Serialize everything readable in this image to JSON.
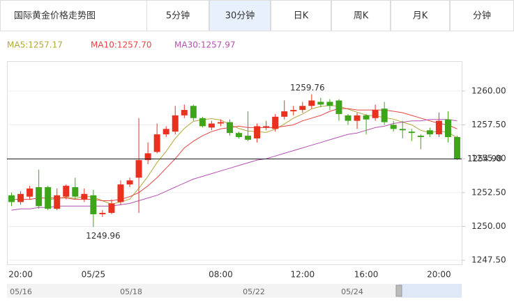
{
  "header": {
    "title": "国际黄金价格走势图",
    "tabs": [
      "5分钟",
      "30分钟",
      "日K",
      "周K",
      "月K",
      "分钟"
    ],
    "selected": 1
  },
  "chart_data": {
    "type": "candlestick",
    "categories": [
      null,
      "20:00",
      null,
      null,
      null,
      null,
      null,
      null,
      null,
      "05/25",
      null,
      null,
      null,
      null,
      null,
      null,
      null,
      null,
      null,
      null,
      null,
      null,
      null,
      "08:00",
      null,
      null,
      null,
      null,
      null,
      null,
      null,
      null,
      "12:00",
      null,
      null,
      null,
      null,
      null,
      null,
      "16:00",
      null,
      null,
      null,
      null,
      null,
      null,
      null,
      "20:00",
      null,
      null
    ],
    "open": [
      1252.3,
      1251.8,
      1252.2,
      1252.9,
      1252.9,
      1251.3,
      1252.2,
      1252.9,
      1252.0,
      1252.3,
      1250.9,
      1251.0,
      1251.8,
      1253.1,
      1253.6,
      1254.9,
      1255.5,
      1256.8,
      1257.0,
      1258.2,
      1258.9,
      1258.0,
      1257.3,
      1257.6,
      1257.7,
      1256.9,
      1256.7,
      1256.5,
      1257.3,
      1257.2,
      1258.1,
      1258.5,
      1258.6,
      1258.9,
      1259.2,
      1259.2,
      1259.3,
      1258.2,
      1257.8,
      1258.2,
      1258.0,
      1258.7,
      1257.5,
      1257.2,
      1257.0,
      1256.7,
      1257.1,
      1256.8,
      1257.9,
      1256.6
    ],
    "high": [
      1252.5,
      1252.6,
      1253.0,
      1254.2,
      1253.0,
      1252.8,
      1253.1,
      1253.6,
      1252.8,
      1252.7,
      1251.2,
      1252.0,
      1253.4,
      1253.6,
      1258.0,
      1256.2,
      1257.6,
      1257.4,
      1258.9,
      1259.0,
      1259.0,
      1258.1,
      1257.8,
      1257.9,
      1257.9,
      1257.0,
      1258.5,
      1257.6,
      1257.8,
      1258.3,
      1259.3,
      1258.9,
      1259.2,
      1259.76,
      1259.5,
      1259.4,
      1259.4,
      1258.3,
      1258.4,
      1258.3,
      1259.0,
      1259.2,
      1257.8,
      1257.8,
      1257.2,
      1256.8,
      1257.3,
      1258.4,
      1258.5,
      1256.7
    ],
    "low": [
      1251.5,
      1251.6,
      1252.0,
      1251.3,
      1251.2,
      1251.2,
      1252.0,
      1252.0,
      1251.8,
      1249.96,
      1250.7,
      1250.9,
      1251.6,
      1252.9,
      1251.0,
      1254.6,
      1255.4,
      1256.6,
      1256.8,
      1258.0,
      1257.8,
      1257.3,
      1257.1,
      1257.4,
      1256.7,
      1256.5,
      1256.3,
      1256.2,
      1257.1,
      1257.0,
      1257.9,
      1258.2,
      1258.4,
      1258.7,
      1258.8,
      1258.6,
      1257.8,
      1257.5,
      1257.2,
      1256.8,
      1257.8,
      1257.5,
      1257.0,
      1256.5,
      1256.3,
      1255.7,
      1256.6,
      1256.6,
      1256.2,
      1254.9
    ],
    "close": [
      1251.8,
      1252.4,
      1252.8,
      1251.5,
      1251.3,
      1252.3,
      1253.0,
      1252.2,
      1252.4,
      1250.9,
      1251.0,
      1251.7,
      1253.1,
      1253.4,
      1254.9,
      1255.4,
      1256.8,
      1257.2,
      1258.2,
      1258.6,
      1258.0,
      1257.4,
      1257.6,
      1257.7,
      1256.9,
      1256.6,
      1256.4,
      1257.4,
      1257.4,
      1258.1,
      1258.5,
      1258.6,
      1258.9,
      1259.3,
      1259.0,
      1258.9,
      1258.3,
      1257.8,
      1258.2,
      1257.9,
      1258.6,
      1257.7,
      1257.2,
      1257.1,
      1256.9,
      1256.6,
      1256.8,
      1257.8,
      1256.6,
      1254.98
    ],
    "up_color": "#e8321f",
    "down_color": "#3ea51b",
    "series": [
      {
        "name": "MA5:1257.17",
        "color": "#b3a73c",
        "values": [
          null,
          null,
          null,
          null,
          1251.96,
          1252.06,
          1252.18,
          1252.06,
          1252.24,
          1252.16,
          1251.9,
          1251.64,
          1251.82,
          1252.02,
          1252.82,
          1253.7,
          1254.72,
          1255.54,
          1256.5,
          1257.24,
          1257.76,
          1257.88,
          1257.96,
          1257.86,
          1257.52,
          1257.24,
          1257.04,
          1257.0,
          1256.94,
          1257.18,
          1257.56,
          1258.0,
          1258.3,
          1258.68,
          1258.86,
          1258.94,
          1258.88,
          1258.66,
          1258.44,
          1258.22,
          1258.16,
          1258.04,
          1257.92,
          1257.7,
          1257.5,
          1257.1,
          1256.92,
          1257.04,
          1256.94,
          1256.56
        ]
      },
      {
        "name": "MA10:1257.70",
        "color": "#e84343",
        "values": [
          1252.0,
          1252.0,
          1252.0,
          1252.1,
          1252.1,
          1252.1,
          1252.1,
          1252.0,
          1252.0,
          1252.0,
          1251.9,
          1251.9,
          1252.0,
          1252.2,
          1252.5,
          1253.0,
          1253.6,
          1254.3,
          1255.0,
          1255.8,
          1256.3,
          1256.7,
          1257.0,
          1257.2,
          1257.3,
          1257.4,
          1257.3,
          1257.3,
          1257.3,
          1257.3,
          1257.4,
          1257.5,
          1257.8,
          1258.0,
          1258.2,
          1258.5,
          1258.7,
          1258.7,
          1258.6,
          1258.6,
          1258.6,
          1258.6,
          1258.5,
          1258.4,
          1258.2,
          1258.0,
          1257.8,
          1257.6,
          1257.5,
          1257.2
        ]
      },
      {
        "name": "MA30:1257.97",
        "color": "#b352b3",
        "values": [
          1251.2,
          1251.3,
          1251.3,
          1251.4,
          1251.4,
          1251.5,
          1251.5,
          1251.5,
          1251.5,
          1251.5,
          1251.5,
          1251.5,
          1251.6,
          1251.7,
          1251.9,
          1252.1,
          1252.3,
          1252.6,
          1252.9,
          1253.2,
          1253.5,
          1253.7,
          1253.9,
          1254.1,
          1254.3,
          1254.5,
          1254.7,
          1254.9,
          1255.0,
          1255.2,
          1255.4,
          1255.6,
          1255.8,
          1256.0,
          1256.2,
          1256.4,
          1256.6,
          1256.8,
          1256.9,
          1257.1,
          1257.3,
          1257.4,
          1257.6,
          1257.7,
          1257.8,
          1257.8,
          1257.9,
          1257.9,
          1257.9,
          1257.8
        ]
      }
    ],
    "ylim": [
      1247.2,
      1262.2
    ],
    "yticks": [
      {
        "value": 1247.5,
        "label": "1247.50"
      },
      {
        "value": 1250,
        "label": "1250.00"
      },
      {
        "value": 1252.5,
        "label": "1252.50"
      },
      {
        "value": 1255,
        "label": "1255.00"
      },
      {
        "value": 1257.5,
        "label": "1257.50"
      },
      {
        "value": 1260,
        "label": "1260.00"
      }
    ],
    "grid": true,
    "navigator": [
      "05/16",
      "05/18",
      "05/22",
      "05/24"
    ]
  }
}
